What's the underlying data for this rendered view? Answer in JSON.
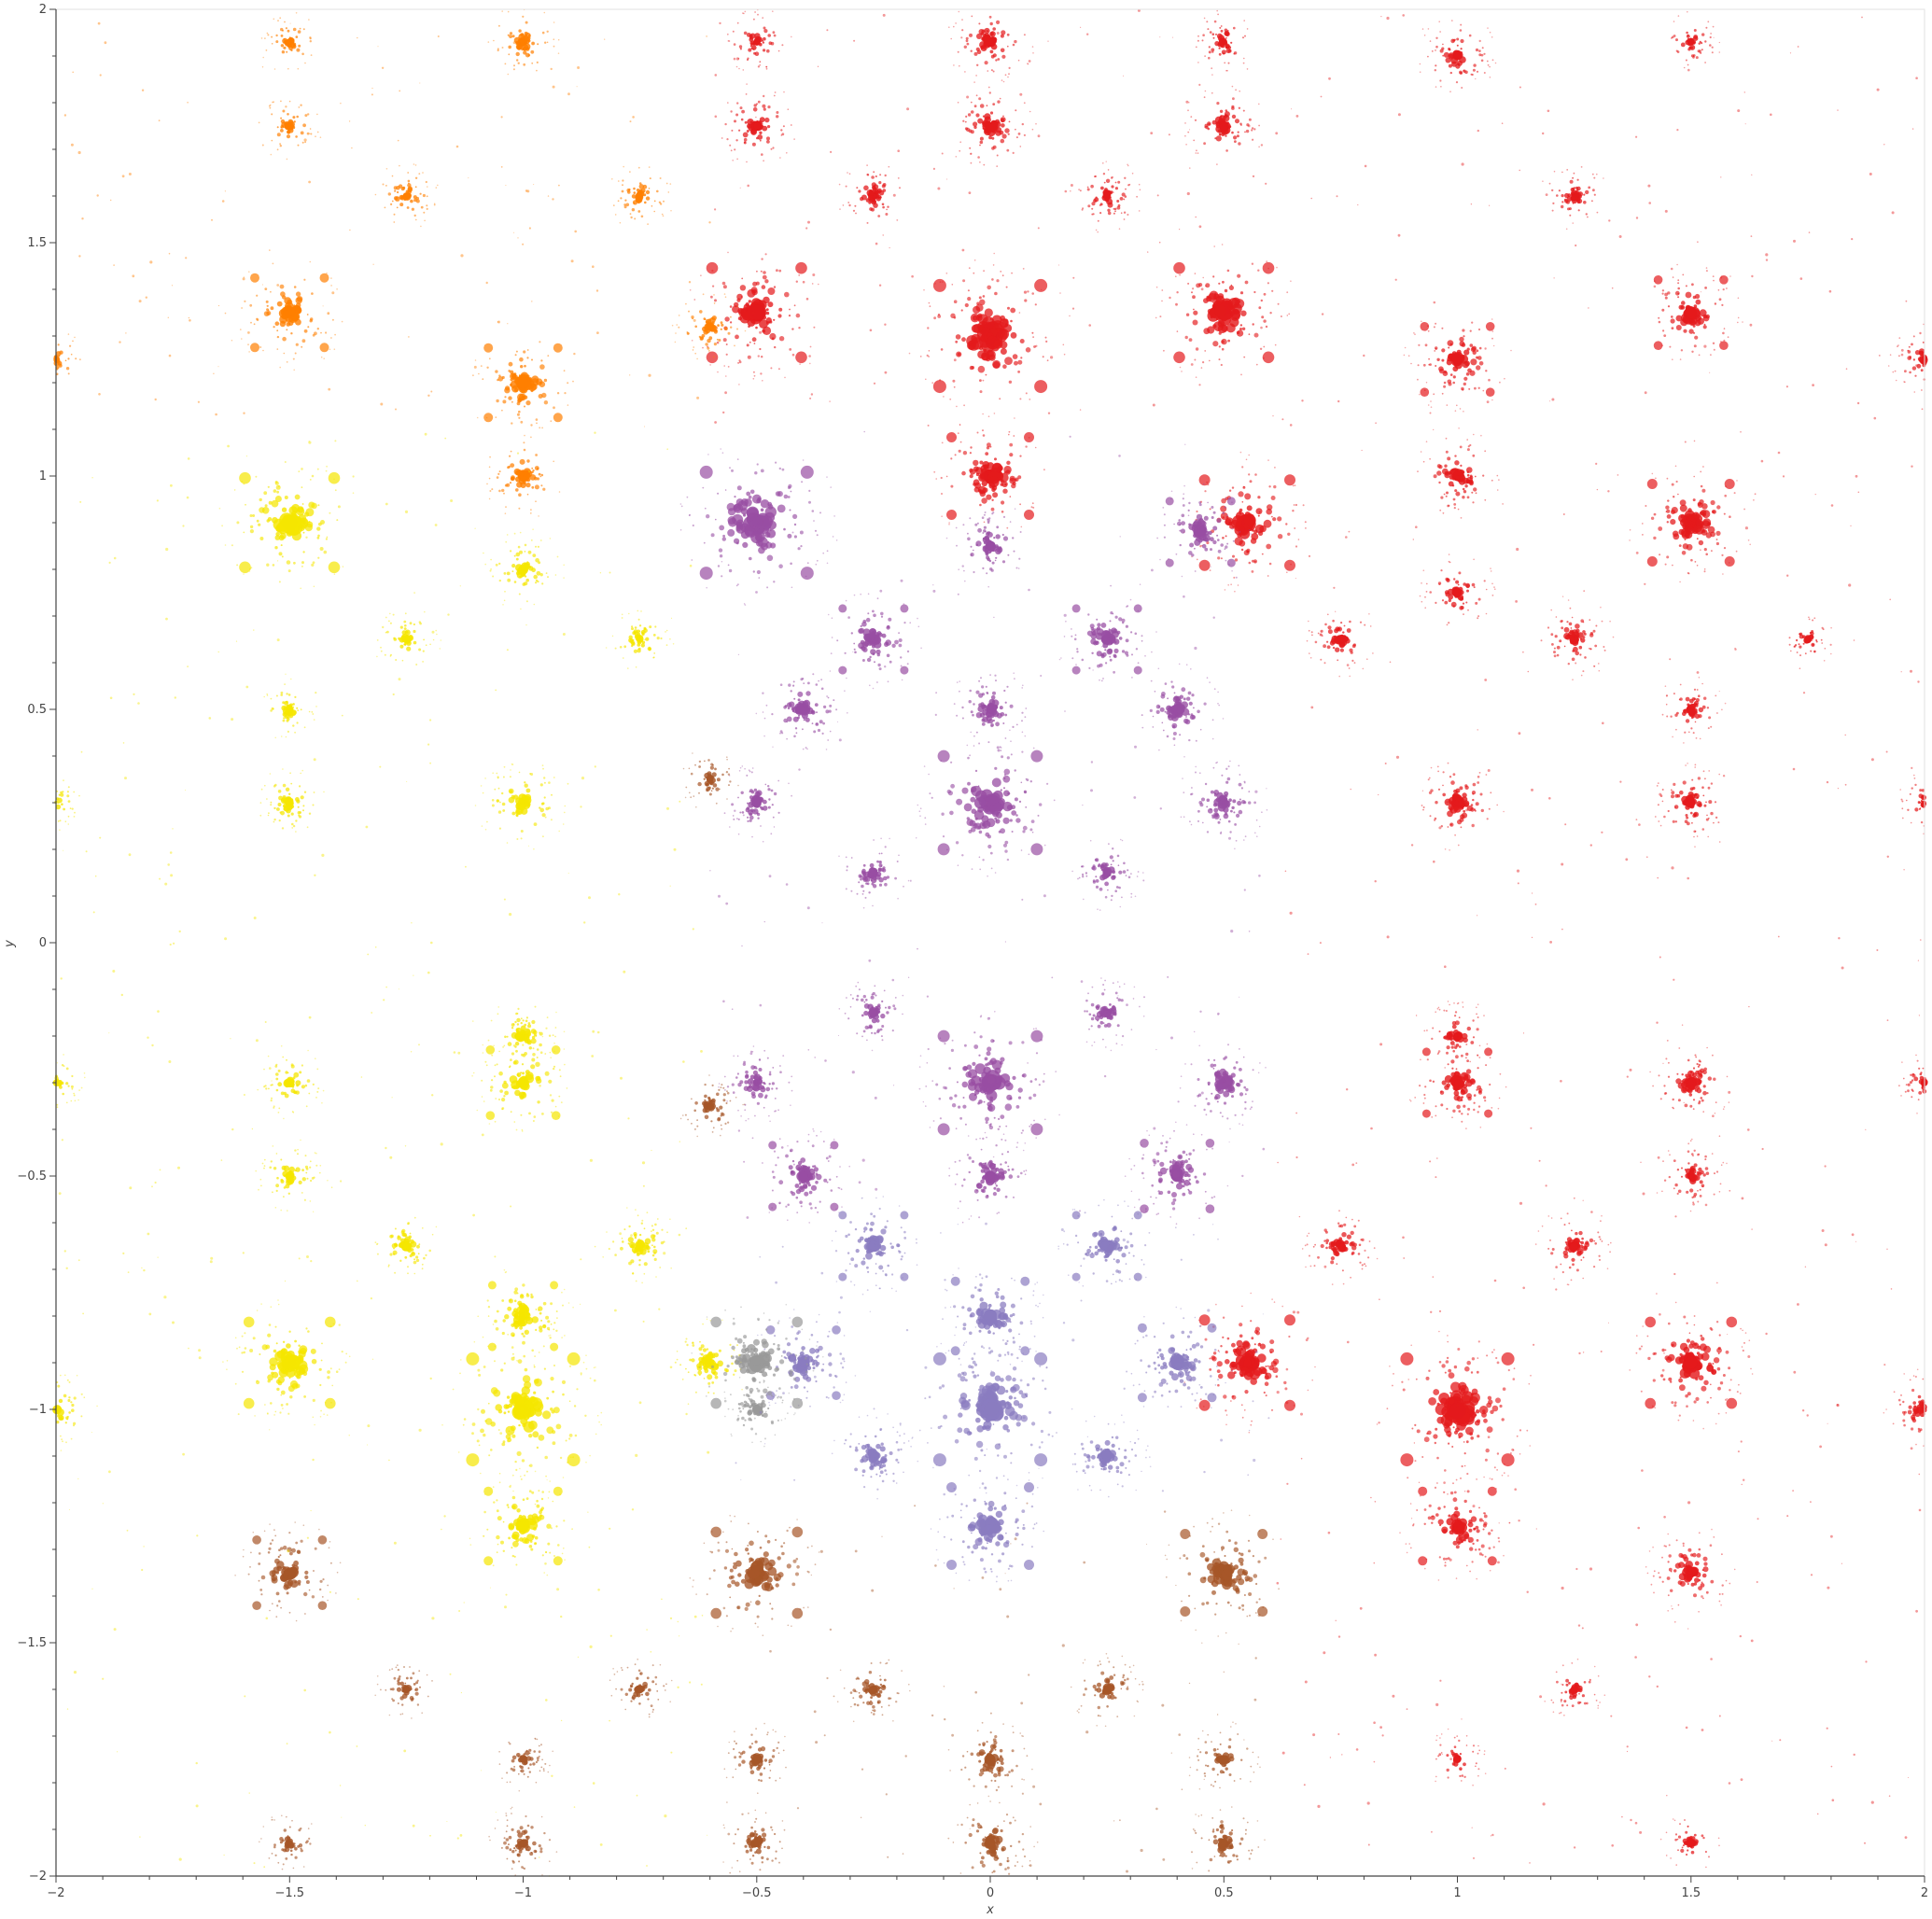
{
  "chart_data": {
    "type": "scatter",
    "title": "",
    "xlabel": "x",
    "ylabel": "y",
    "xlim": [
      -2,
      2
    ],
    "ylim": [
      -2,
      2
    ],
    "grid": false,
    "legend": "none",
    "x_ticks": [
      -2,
      -1.5,
      -1,
      -0.5,
      0,
      0.5,
      1,
      1.5,
      2
    ],
    "y_ticks": [
      -2,
      -1.5,
      -1,
      -0.5,
      0,
      0.5,
      1,
      1.5,
      2
    ],
    "x_tick_labels": [
      "−2",
      "−1.5",
      "−1",
      "−0.5",
      "0",
      "0.5",
      "1",
      "1.5",
      "2"
    ],
    "y_tick_labels": [
      "−2",
      "−1.5",
      "−1",
      "−0.5",
      "0",
      "0.5",
      "1",
      "1.5",
      "2"
    ],
    "colors": {
      "red": "#e41a1c",
      "orange": "#ff7f00",
      "yellow": "#f5e600",
      "purple": "#984ea3",
      "lavender": "#8a7cc0",
      "brown": "#a65628",
      "gray": "#999999",
      "axis": "#444444"
    },
    "clusters": [
      {
        "x": 0,
        "y": 1.3,
        "color": "red",
        "weight": 1.0
      },
      {
        "x": 0,
        "y": 1.0,
        "color": "red",
        "weight": 0.7
      },
      {
        "x": 0,
        "y": 1.75,
        "color": "red",
        "weight": 0.45
      },
      {
        "x": 0,
        "y": 1.93,
        "color": "red",
        "weight": 0.4
      },
      {
        "x": -0.5,
        "y": 1.35,
        "color": "red",
        "weight": 0.85
      },
      {
        "x": 0.5,
        "y": 1.35,
        "color": "red",
        "weight": 0.85
      },
      {
        "x": -0.5,
        "y": 1.75,
        "color": "red",
        "weight": 0.4
      },
      {
        "x": 0.5,
        "y": 1.75,
        "color": "red",
        "weight": 0.4
      },
      {
        "x": -0.25,
        "y": 1.6,
        "color": "red",
        "weight": 0.3
      },
      {
        "x": 0.25,
        "y": 1.6,
        "color": "red",
        "weight": 0.3
      },
      {
        "x": -0.5,
        "y": 1.93,
        "color": "red",
        "weight": 0.25
      },
      {
        "x": 0.5,
        "y": 1.93,
        "color": "red",
        "weight": 0.25
      },
      {
        "x": 1,
        "y": 1.25,
        "color": "red",
        "weight": 0.55
      },
      {
        "x": 1,
        "y": 1.0,
        "color": "red",
        "weight": 0.45
      },
      {
        "x": 1,
        "y": 1.9,
        "color": "red",
        "weight": 0.35
      },
      {
        "x": 1.5,
        "y": 1.35,
        "color": "red",
        "weight": 0.55
      },
      {
        "x": 1.5,
        "y": 0.9,
        "color": "red",
        "weight": 0.7
      },
      {
        "x": 1.25,
        "y": 1.6,
        "color": "red",
        "weight": 0.25
      },
      {
        "x": 1.5,
        "y": 1.93,
        "color": "red",
        "weight": 0.2
      },
      {
        "x": 2,
        "y": 1.25,
        "color": "red",
        "weight": 0.3
      },
      {
        "x": 0.55,
        "y": 0.9,
        "color": "red",
        "weight": 0.8
      },
      {
        "x": 1,
        "y": 0.75,
        "color": "red",
        "weight": 0.35
      },
      {
        "x": 0.75,
        "y": 0.65,
        "color": "red",
        "weight": 0.3
      },
      {
        "x": 1.25,
        "y": 0.65,
        "color": "red",
        "weight": 0.35
      },
      {
        "x": 1,
        "y": 0.3,
        "color": "red",
        "weight": 0.45
      },
      {
        "x": 1.5,
        "y": 0.3,
        "color": "red",
        "weight": 0.4
      },
      {
        "x": 1.5,
        "y": 0.5,
        "color": "red",
        "weight": 0.25
      },
      {
        "x": 1.75,
        "y": 0.65,
        "color": "red",
        "weight": 0.15
      },
      {
        "x": 2,
        "y": 0.3,
        "color": "red",
        "weight": 0.2
      },
      {
        "x": 1,
        "y": -0.3,
        "color": "red",
        "weight": 0.5
      },
      {
        "x": 1,
        "y": -0.2,
        "color": "red",
        "weight": 0.3
      },
      {
        "x": 1.5,
        "y": -0.3,
        "color": "red",
        "weight": 0.4
      },
      {
        "x": 1.5,
        "y": -0.5,
        "color": "red",
        "weight": 0.3
      },
      {
        "x": 2,
        "y": -0.3,
        "color": "red",
        "weight": 0.2
      },
      {
        "x": 0.75,
        "y": -0.65,
        "color": "red",
        "weight": 0.35
      },
      {
        "x": 1.25,
        "y": -0.65,
        "color": "red",
        "weight": 0.35
      },
      {
        "x": 1,
        "y": -1.0,
        "color": "red",
        "weight": 1.0
      },
      {
        "x": 1,
        "y": -1.25,
        "color": "red",
        "weight": 0.6
      },
      {
        "x": 0.55,
        "y": -0.9,
        "color": "red",
        "weight": 0.8
      },
      {
        "x": 1.5,
        "y": -0.9,
        "color": "red",
        "weight": 0.75
      },
      {
        "x": 1.5,
        "y": -1.35,
        "color": "red",
        "weight": 0.45
      },
      {
        "x": 2,
        "y": -1.0,
        "color": "red",
        "weight": 0.35
      },
      {
        "x": 1.25,
        "y": -1.6,
        "color": "red",
        "weight": 0.2
      },
      {
        "x": 1,
        "y": -1.75,
        "color": "red",
        "weight": 0.2
      },
      {
        "x": 1.5,
        "y": -1.93,
        "color": "red",
        "weight": 0.2
      },
      {
        "x": -1,
        "y": 1.2,
        "color": "orange",
        "weight": 0.6
      },
      {
        "x": -1,
        "y": 1.0,
        "color": "orange",
        "weight": 0.4
      },
      {
        "x": -1.5,
        "y": 1.35,
        "color": "orange",
        "weight": 0.6
      },
      {
        "x": -0.6,
        "y": 1.32,
        "color": "orange",
        "weight": 0.3
      },
      {
        "x": -1.25,
        "y": 1.6,
        "color": "orange",
        "weight": 0.25
      },
      {
        "x": -0.75,
        "y": 1.6,
        "color": "orange",
        "weight": 0.25
      },
      {
        "x": -1,
        "y": 1.93,
        "color": "orange",
        "weight": 0.3
      },
      {
        "x": -1.5,
        "y": 1.75,
        "color": "orange",
        "weight": 0.25
      },
      {
        "x": -1.5,
        "y": 1.93,
        "color": "orange",
        "weight": 0.2
      },
      {
        "x": -2,
        "y": 1.25,
        "color": "orange",
        "weight": 0.2
      },
      {
        "x": -1.5,
        "y": 0.9,
        "color": "yellow",
        "weight": 0.85
      },
      {
        "x": -1,
        "y": 0.8,
        "color": "yellow",
        "weight": 0.35
      },
      {
        "x": -1.25,
        "y": 0.65,
        "color": "yellow",
        "weight": 0.25
      },
      {
        "x": -0.75,
        "y": 0.65,
        "color": "yellow",
        "weight": 0.25
      },
      {
        "x": -1,
        "y": 0.3,
        "color": "yellow",
        "weight": 0.45
      },
      {
        "x": -1.5,
        "y": 0.3,
        "color": "yellow",
        "weight": 0.3
      },
      {
        "x": -1.5,
        "y": 0.5,
        "color": "yellow",
        "weight": 0.2
      },
      {
        "x": -2,
        "y": 0.3,
        "color": "yellow",
        "weight": 0.15
      },
      {
        "x": -1,
        "y": -0.3,
        "color": "yellow",
        "weight": 0.55
      },
      {
        "x": -1,
        "y": -0.2,
        "color": "yellow",
        "weight": 0.35
      },
      {
        "x": -1.5,
        "y": -0.3,
        "color": "yellow",
        "weight": 0.3
      },
      {
        "x": -1.5,
        "y": -0.5,
        "color": "yellow",
        "weight": 0.3
      },
      {
        "x": -2,
        "y": -0.3,
        "color": "yellow",
        "weight": 0.2
      },
      {
        "x": -1.25,
        "y": -0.65,
        "color": "yellow",
        "weight": 0.3
      },
      {
        "x": -0.75,
        "y": -0.65,
        "color": "yellow",
        "weight": 0.35
      },
      {
        "x": -1,
        "y": -1.0,
        "color": "yellow",
        "weight": 1.0
      },
      {
        "x": -1,
        "y": -0.8,
        "color": "yellow",
        "weight": 0.5
      },
      {
        "x": -1,
        "y": -1.25,
        "color": "yellow",
        "weight": 0.6
      },
      {
        "x": -1.5,
        "y": -0.9,
        "color": "yellow",
        "weight": 0.75
      },
      {
        "x": -0.6,
        "y": -0.9,
        "color": "yellow",
        "weight": 0.4
      },
      {
        "x": -2,
        "y": -1.0,
        "color": "yellow",
        "weight": 0.35
      },
      {
        "x": -0.5,
        "y": 0.9,
        "color": "purple",
        "weight": 1.0
      },
      {
        "x": 0.45,
        "y": 0.88,
        "color": "purple",
        "weight": 0.5
      },
      {
        "x": 0,
        "y": 0.85,
        "color": "purple",
        "weight": 0.4
      },
      {
        "x": -0.25,
        "y": 0.65,
        "color": "purple",
        "weight": 0.5
      },
      {
        "x": 0.25,
        "y": 0.65,
        "color": "purple",
        "weight": 0.5
      },
      {
        "x": 0,
        "y": 0.3,
        "color": "purple",
        "weight": 0.9
      },
      {
        "x": 0,
        "y": 0.5,
        "color": "purple",
        "weight": 0.4
      },
      {
        "x": -0.4,
        "y": 0.5,
        "color": "purple",
        "weight": 0.45
      },
      {
        "x": 0.4,
        "y": 0.5,
        "color": "purple",
        "weight": 0.45
      },
      {
        "x": -0.5,
        "y": 0.3,
        "color": "purple",
        "weight": 0.35
      },
      {
        "x": 0.5,
        "y": 0.3,
        "color": "purple",
        "weight": 0.45
      },
      {
        "x": -0.25,
        "y": 0.15,
        "color": "purple",
        "weight": 0.3
      },
      {
        "x": 0.25,
        "y": 0.15,
        "color": "purple",
        "weight": 0.3
      },
      {
        "x": 0,
        "y": -0.3,
        "color": "purple",
        "weight": 0.9
      },
      {
        "x": 0,
        "y": -0.5,
        "color": "purple",
        "weight": 0.45
      },
      {
        "x": -0.4,
        "y": -0.5,
        "color": "purple",
        "weight": 0.5
      },
      {
        "x": 0.4,
        "y": -0.5,
        "color": "purple",
        "weight": 0.55
      },
      {
        "x": -0.5,
        "y": -0.3,
        "color": "purple",
        "weight": 0.35
      },
      {
        "x": 0.5,
        "y": -0.3,
        "color": "purple",
        "weight": 0.45
      },
      {
        "x": -0.25,
        "y": -0.15,
        "color": "purple",
        "weight": 0.3
      },
      {
        "x": 0.25,
        "y": -0.15,
        "color": "purple",
        "weight": 0.3
      },
      {
        "x": -0.25,
        "y": -0.65,
        "color": "lavender",
        "weight": 0.5
      },
      {
        "x": 0.25,
        "y": -0.65,
        "color": "lavender",
        "weight": 0.5
      },
      {
        "x": 0,
        "y": -1.0,
        "color": "lavender",
        "weight": 1.0
      },
      {
        "x": 0,
        "y": -0.8,
        "color": "lavender",
        "weight": 0.6
      },
      {
        "x": 0,
        "y": -1.25,
        "color": "lavender",
        "weight": 0.7
      },
      {
        "x": -0.4,
        "y": -0.9,
        "color": "lavender",
        "weight": 0.55
      },
      {
        "x": 0.4,
        "y": -0.9,
        "color": "lavender",
        "weight": 0.6
      },
      {
        "x": -0.25,
        "y": -1.1,
        "color": "lavender",
        "weight": 0.4
      },
      {
        "x": 0.25,
        "y": -1.1,
        "color": "lavender",
        "weight": 0.4
      },
      {
        "x": -0.5,
        "y": -0.9,
        "color": "gray",
        "weight": 0.75
      },
      {
        "x": -0.5,
        "y": -1.0,
        "color": "gray",
        "weight": 0.3
      },
      {
        "x": -0.5,
        "y": -1.35,
        "color": "brown",
        "weight": 0.75
      },
      {
        "x": 0.5,
        "y": -1.35,
        "color": "brown",
        "weight": 0.7
      },
      {
        "x": -1.5,
        "y": -1.35,
        "color": "brown",
        "weight": 0.55
      },
      {
        "x": 0,
        "y": -1.75,
        "color": "brown",
        "weight": 0.4
      },
      {
        "x": 0,
        "y": -1.93,
        "color": "brown",
        "weight": 0.45
      },
      {
        "x": -0.5,
        "y": -1.75,
        "color": "brown",
        "weight": 0.3
      },
      {
        "x": 0.5,
        "y": -1.75,
        "color": "brown",
        "weight": 0.3
      },
      {
        "x": -0.25,
        "y": -1.6,
        "color": "brown",
        "weight": 0.3
      },
      {
        "x": 0.25,
        "y": -1.6,
        "color": "brown",
        "weight": 0.3
      },
      {
        "x": -0.5,
        "y": -1.93,
        "color": "brown",
        "weight": 0.3
      },
      {
        "x": 0.5,
        "y": -1.93,
        "color": "brown",
        "weight": 0.35
      },
      {
        "x": -1,
        "y": -1.93,
        "color": "brown",
        "weight": 0.3
      },
      {
        "x": -1.25,
        "y": -1.6,
        "color": "brown",
        "weight": 0.2
      },
      {
        "x": -0.75,
        "y": -1.6,
        "color": "brown",
        "weight": 0.25
      },
      {
        "x": -1.5,
        "y": -1.93,
        "color": "brown",
        "weight": 0.2
      },
      {
        "x": -1,
        "y": -1.75,
        "color": "brown",
        "weight": 0.2
      },
      {
        "x": -0.6,
        "y": -0.35,
        "color": "brown",
        "weight": 0.25
      },
      {
        "x": -0.6,
        "y": 0.35,
        "color": "brown",
        "weight": 0.2
      }
    ]
  }
}
